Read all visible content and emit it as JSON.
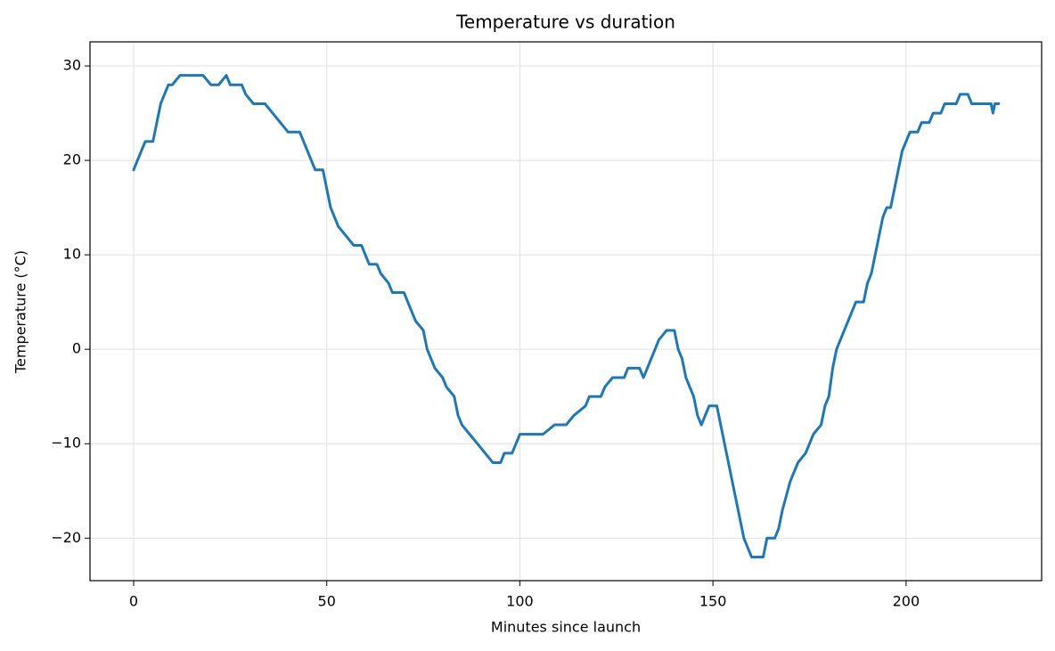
{
  "chart_data": {
    "type": "line",
    "title": "Temperature vs duration",
    "x_label": "Minutes since launch",
    "y_label": "Temperature (°C)",
    "color": "#1f77b4",
    "grid": true,
    "xlim": [
      -11.3,
      235.1
    ],
    "ylim": [
      -24.5,
      32.55
    ],
    "xticks": [
      0,
      50,
      100,
      150,
      200
    ],
    "yticks": [
      {
        "value": -20,
        "label": "−20"
      },
      {
        "value": -10,
        "label": "−10"
      },
      0,
      10,
      20,
      30
    ],
    "x": [
      0,
      1,
      2,
      3,
      5,
      6,
      7,
      8,
      9,
      10,
      12,
      15,
      18,
      20,
      22,
      24,
      25,
      28,
      29,
      31,
      34,
      36,
      38,
      40,
      43,
      45,
      47,
      49,
      50,
      51,
      53,
      55,
      57,
      59,
      60,
      61,
      63,
      64,
      66,
      67,
      70,
      71,
      72,
      73,
      75,
      76,
      77,
      78,
      80,
      81,
      83,
      84,
      85,
      87,
      89,
      91,
      93,
      95,
      96,
      98,
      99,
      100,
      103,
      106,
      109,
      112,
      114,
      117,
      118,
      121,
      122,
      124,
      127,
      128,
      131,
      132,
      133,
      134,
      135,
      136,
      138,
      140,
      141,
      142,
      143,
      145,
      146,
      147,
      148,
      149,
      151,
      152,
      153,
      154,
      155,
      156,
      157,
      158,
      159,
      160,
      163,
      164,
      166,
      167,
      168,
      170,
      172,
      174,
      175,
      176,
      178,
      179,
      180,
      181,
      182,
      183,
      184,
      185,
      186,
      187,
      189,
      190,
      191,
      192,
      193,
      194,
      195,
      196,
      197,
      198,
      199,
      200,
      201,
      203,
      204,
      206,
      207,
      209,
      210,
      213,
      214,
      216,
      217,
      222,
      222.5,
      223,
      224
    ],
    "values": [
      19,
      20,
      21,
      22,
      22,
      24,
      26,
      27,
      28,
      28,
      29,
      29,
      29,
      28,
      28,
      29,
      28,
      28,
      27,
      26,
      26,
      25,
      24,
      23,
      23,
      21,
      19,
      19,
      17,
      15,
      13,
      12,
      11,
      11,
      10,
      9,
      9,
      8,
      7,
      6,
      6,
      5,
      4,
      3,
      2,
      0,
      -1,
      -2,
      -3,
      -4,
      -5,
      -7,
      -8,
      -9,
      -10,
      -11,
      -12,
      -12,
      -11,
      -11,
      -10,
      -9,
      -9,
      -9,
      -8,
      -8,
      -7,
      -6,
      -5,
      -5,
      -4,
      -3,
      -3,
      -2,
      -2,
      -3,
      -2,
      -1,
      0,
      1,
      2,
      2,
      0,
      -1,
      -3,
      -5,
      -7,
      -8,
      -7,
      -6,
      -6,
      -8,
      -10,
      -12,
      -14,
      -16,
      -18,
      -20,
      -21,
      -22,
      -22,
      -20,
      -20,
      -19,
      -17,
      -14,
      -12,
      -11,
      -10,
      -9,
      -8,
      -6,
      -5,
      -2,
      0,
      1,
      2,
      3,
      4,
      5,
      5,
      7,
      8,
      10,
      12,
      14,
      15,
      15,
      17,
      19,
      21,
      22,
      23,
      23,
      24,
      24,
      25,
      25,
      26,
      26,
      27,
      27,
      26,
      26,
      25,
      26,
      26
    ]
  }
}
